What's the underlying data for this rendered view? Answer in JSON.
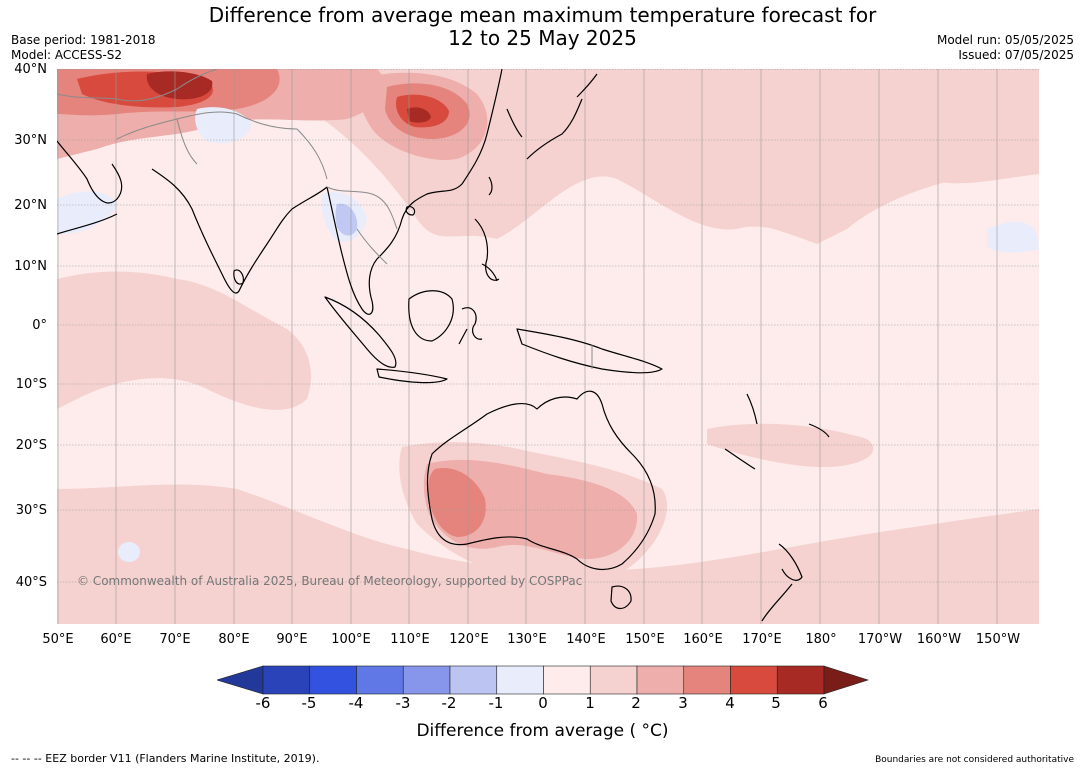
{
  "title": {
    "line1": "Difference from average mean maximum temperature forecast for",
    "line2": "12 to 25 May 2025"
  },
  "meta": {
    "base_period": "Base period: 1981-2018",
    "model": "Model: ACCESS-S2",
    "model_run": "Model run: 05/05/2025",
    "issued": "Issued: 07/05/2025"
  },
  "map": {
    "lat_labels": [
      "40°N",
      "30°N",
      "20°N",
      "10°N",
      "0°",
      "10°S",
      "20°S",
      "30°S",
      "40°S"
    ],
    "lon_labels": [
      "50°E",
      "60°E",
      "70°E",
      "80°E",
      "90°E",
      "100°E",
      "110°E",
      "120°E",
      "130°E",
      "140°E",
      "150°E",
      "160°E",
      "170°E",
      "180°",
      "170°W",
      "160°W",
      "150°W"
    ],
    "copyright": "© Commonwealth of Australia 2025, Bureau of Meteorology, supported by COSPPac",
    "colors": {
      "ocean_0_1": "#fdeceb",
      "anom_1_2": "#f5d2d0",
      "anom_2_3": "#eeaeab",
      "anom_3_4": "#e5847d",
      "anom_4_5": "#d84a3d",
      "anom_5_6": "#a82a24",
      "anom_m1_0": "#e9edfb",
      "anom_m2_m1": "#c1c8f3",
      "coastline": "#000000",
      "boundary": "#8a8a8a"
    }
  },
  "colorbar": {
    "label": "Difference from average ( °C)",
    "ticks": [
      "-6",
      "-5",
      "-4",
      "-3",
      "-2",
      "-1",
      "0",
      "1",
      "2",
      "3",
      "4",
      "5",
      "6"
    ],
    "colors": [
      "#23399a",
      "#2a43b8",
      "#3452e0",
      "#5f78e6",
      "#8796ea",
      "#bcc4f2",
      "#e9edfb",
      "#fdeceb",
      "#f5d2d0",
      "#eeaeab",
      "#e5847d",
      "#d84a3d",
      "#a82a24",
      "#7a1d18"
    ]
  },
  "footer": {
    "eez": "--  --  -- EEZ border V11 (Flanders Marine Institute, 2019).",
    "disclaimer": "Boundaries are not considered authoritative"
  }
}
